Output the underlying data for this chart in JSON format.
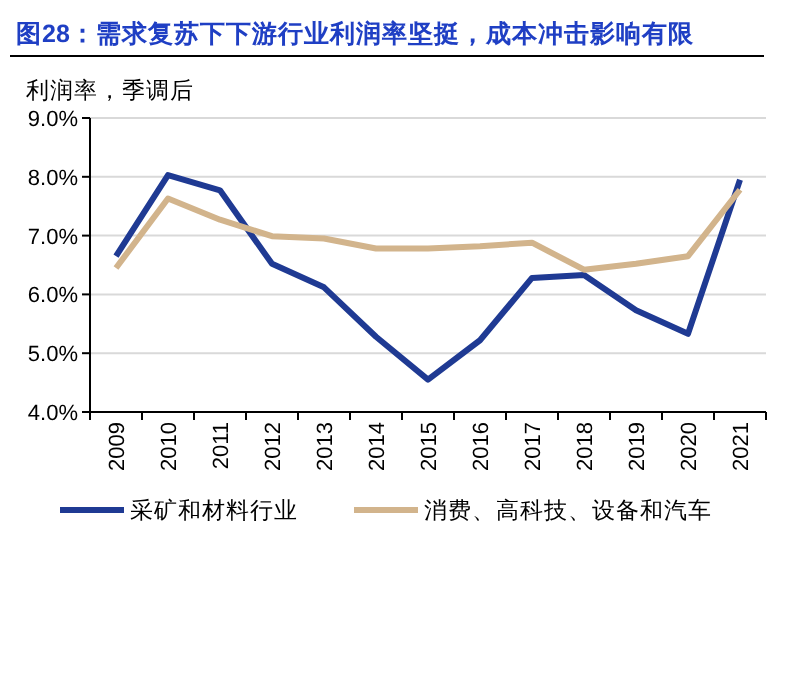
{
  "chart_data": {
    "type": "line",
    "title": "图28：需求复苏下下游行业利润率坚挺，成本冲击影响有限",
    "ylabel": "利润率，季调后",
    "categories": [
      "2009",
      "2010",
      "2011",
      "2012",
      "2013",
      "2014",
      "2015",
      "2016",
      "2017",
      "2018",
      "2019",
      "2020",
      "2021"
    ],
    "series": [
      {
        "name": "采矿和材料行业",
        "color": "#1f3a93",
        "values": [
          6.65,
          8.03,
          7.77,
          6.52,
          6.12,
          5.28,
          4.55,
          5.22,
          6.28,
          6.33,
          5.73,
          5.33,
          7.95
        ]
      },
      {
        "name": "消费、高科技、设备和汽车",
        "color": "#d2b48c",
        "values": [
          6.45,
          7.63,
          7.27,
          6.99,
          6.95,
          6.78,
          6.78,
          6.82,
          6.88,
          6.42,
          6.52,
          6.65,
          7.78
        ]
      }
    ],
    "ylim": [
      4.0,
      9.0
    ],
    "yticks": [
      {
        "value": 4.0,
        "label": "4.0%"
      },
      {
        "value": 5.0,
        "label": "5.0%"
      },
      {
        "value": 6.0,
        "label": "6.0%"
      },
      {
        "value": 7.0,
        "label": "7.0%"
      },
      {
        "value": 8.0,
        "label": "8.0%"
      },
      {
        "value": 9.0,
        "label": "9.0%"
      }
    ],
    "grid": "y",
    "legend": "bottom",
    "marker": "none",
    "line_style": "solid"
  }
}
